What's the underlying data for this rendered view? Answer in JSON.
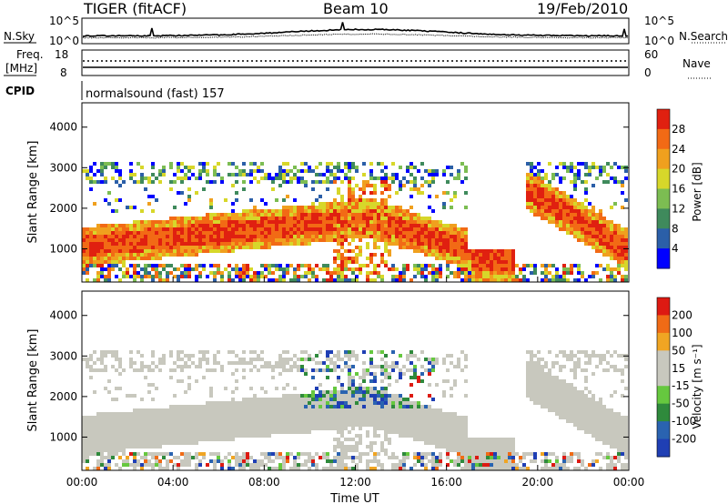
{
  "header": {
    "radar": "TIGER (fitACF)",
    "beam": "Beam 10",
    "date": "19/Feb/2010"
  },
  "status_panels": {
    "nsky_label": "N.Sky",
    "nsearch_label": "N.Search",
    "noise_ticks_left": [
      "10^5",
      "10^0"
    ],
    "noise_ticks_right": [
      "10^5",
      "10^0"
    ],
    "freq_label": "Freq.",
    "freq_unit": "[MHz]",
    "freq_ticks": [
      "18",
      "8"
    ],
    "nave_label": "Nave",
    "nave_ticks": [
      "60",
      "0"
    ],
    "cpid_label": "CPID",
    "cpid_text": "normalsound (fast) 157"
  },
  "colors": {
    "power_scale": [
      "#0000ff",
      "#2b5fa8",
      "#3f8a5c",
      "#7cbd52",
      "#d7d72a",
      "#f0a01e",
      "#f26a15",
      "#e02010"
    ],
    "velocity_scale": [
      "#1f3fb4",
      "#2a63b0",
      "#2f8a3c",
      "#66c83f",
      "#c8c8be",
      "#c8c8be",
      "#f0a523",
      "#f06b16",
      "#dd1a12"
    ],
    "ground_scatter_grey": "#c8c8be"
  },
  "chart_data": [
    {
      "type": "heatmap",
      "name": "power",
      "ylabel": "Slant Range [km]",
      "xlabel": "",
      "xlim": [
        0,
        24
      ],
      "ylim": [
        180,
        4600
      ],
      "x_ticks": [
        "00:00",
        "04:00",
        "08:00",
        "12:00",
        "16:00",
        "20:00",
        "00:00"
      ],
      "y_ticks": [
        1000,
        2000,
        3000,
        4000
      ],
      "colorbar": {
        "label": "Power [dB]",
        "ticks": [
          "4",
          "8",
          "12",
          "16",
          "20",
          "24",
          "28"
        ],
        "range": [
          0,
          32
        ]
      }
    },
    {
      "type": "heatmap",
      "name": "velocity",
      "ylabel": "Slant Range [km]",
      "xlabel": "Time UT",
      "xlim": [
        0,
        24
      ],
      "ylim": [
        180,
        4600
      ],
      "x_ticks": [
        "00:00",
        "04:00",
        "08:00",
        "12:00",
        "16:00",
        "20:00",
        "00:00"
      ],
      "y_ticks": [
        1000,
        2000,
        3000,
        4000
      ],
      "colorbar": {
        "label": "Velocity [m s⁻¹]",
        "ticks": [
          "200",
          "100",
          "50",
          "15",
          "-15",
          "-50",
          "-100",
          "-200"
        ]
      }
    }
  ]
}
